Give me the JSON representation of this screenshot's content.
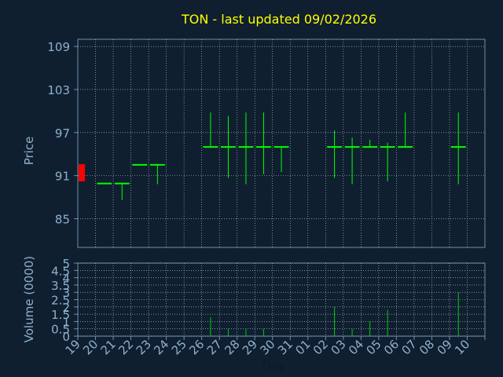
{
  "chart_data": {
    "type": "candlestick",
    "title": "TON - last updated 09/02/2026",
    "xlabel": "Day",
    "price_panel": {
      "ylabel": "Price",
      "ylim": [
        81,
        110
      ],
      "yticks": [
        85,
        91,
        97,
        103,
        109
      ],
      "grid": true
    },
    "volume_panel": {
      "ylabel": "Volume (0000)",
      "ylim": [
        0,
        5
      ],
      "yticks": [
        0,
        0.5,
        1,
        1.5,
        2,
        2.5,
        3,
        3.5,
        4,
        4.5,
        5
      ],
      "ytick_labels": [
        "0",
        "0.5",
        "1",
        "1.5",
        "2",
        "2.5",
        "3",
        "3.5",
        "4",
        "4.5",
        "5"
      ],
      "grid": true
    },
    "categories": [
      "19",
      "20",
      "21",
      "22",
      "23",
      "24",
      "25",
      "26",
      "27",
      "28",
      "29",
      "30",
      "31",
      "01",
      "02",
      "03",
      "04",
      "05",
      "06",
      "07",
      "08",
      "09",
      "10"
    ],
    "ohlc": [
      {
        "day": "19",
        "open": 90.2,
        "high": 92.6,
        "low": 90.2,
        "close": 92.6,
        "volume": 0
      },
      {
        "day": "20",
        "open": 89.9,
        "high": 89.9,
        "low": 89.9,
        "close": 89.9,
        "volume": 0
      },
      {
        "day": "21",
        "open": 89.9,
        "high": 89.9,
        "low": 87.6,
        "close": 89.9,
        "volume": 0
      },
      {
        "day": "22",
        "open": 92.5,
        "high": 92.5,
        "low": 92.5,
        "close": 92.5,
        "volume": 0
      },
      {
        "day": "23",
        "open": 92.5,
        "high": 92.5,
        "low": 89.8,
        "close": 92.5,
        "volume": 0
      },
      {
        "day": "26",
        "open": 95.0,
        "high": 99.8,
        "low": 95.0,
        "close": 95.0,
        "volume": 1.3
      },
      {
        "day": "27",
        "open": 95.0,
        "high": 99.3,
        "low": 90.7,
        "close": 95.0,
        "volume": 0.5
      },
      {
        "day": "28",
        "open": 95.0,
        "high": 99.8,
        "low": 89.8,
        "close": 95.0,
        "volume": 0.5
      },
      {
        "day": "29",
        "open": 95.0,
        "high": 99.8,
        "low": 91.2,
        "close": 95.0,
        "volume": 0.5
      },
      {
        "day": "30",
        "open": 95.0,
        "high": 95.0,
        "low": 91.5,
        "close": 95.0,
        "volume": 0
      },
      {
        "day": "02",
        "open": 95.0,
        "high": 97.3,
        "low": 90.7,
        "close": 95.0,
        "volume": 2.0
      },
      {
        "day": "03",
        "open": 95.0,
        "high": 96.3,
        "low": 89.8,
        "close": 95.0,
        "volume": 0.5
      },
      {
        "day": "04",
        "open": 95.0,
        "high": 96.0,
        "low": 95.0,
        "close": 95.0,
        "volume": 1.0
      },
      {
        "day": "05",
        "open": 95.0,
        "high": 95.6,
        "low": 90.2,
        "close": 95.0,
        "volume": 1.8
      },
      {
        "day": "06",
        "open": 95.0,
        "high": 99.8,
        "low": 95.0,
        "close": 95.0,
        "volume": 0
      },
      {
        "day": "09",
        "open": 95.0,
        "high": 99.8,
        "low": 89.8,
        "close": 95.0,
        "volume": 3.0
      }
    ],
    "colors": {
      "background": "#0f1f30",
      "panel_border": "#6d8fa8",
      "grid": "#c8d4e0",
      "title": "#ffff00",
      "axis_text": "#8fb0cc",
      "candle": "#00ff00",
      "first_candle": "#ff0000",
      "volume": "#00cc00"
    }
  }
}
